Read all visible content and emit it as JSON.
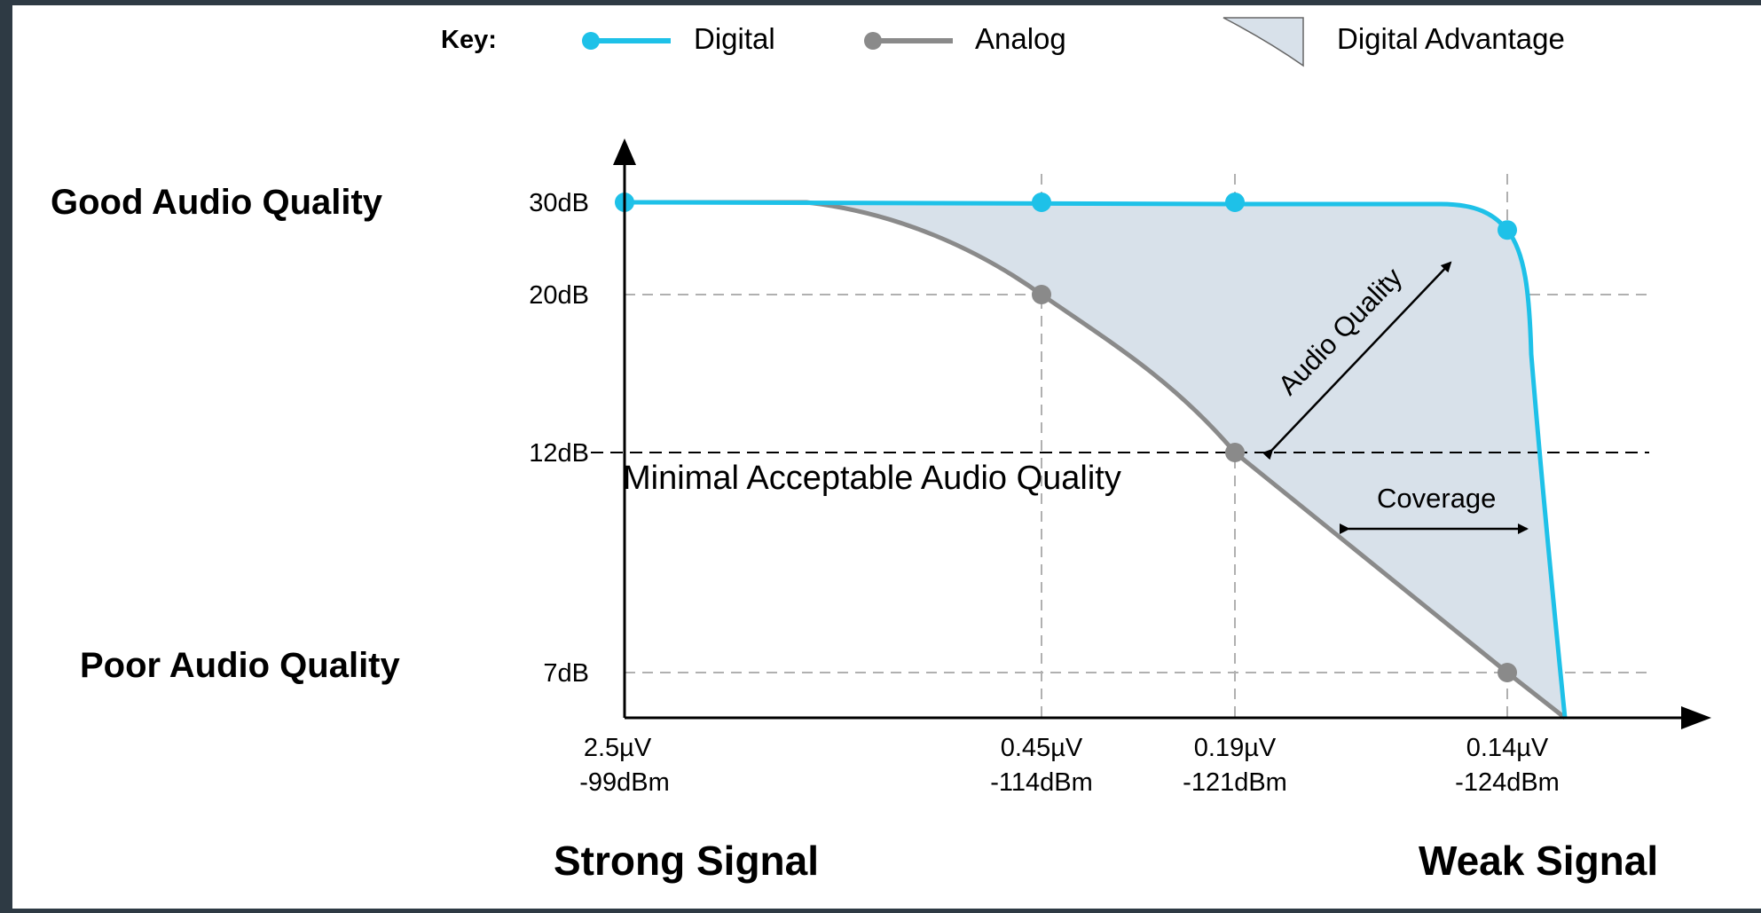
{
  "legend": {
    "key_label": "Key:",
    "items": [
      {
        "label": "Digital",
        "kind": "line",
        "color": "#1ec1e8"
      },
      {
        "label": "Analog",
        "kind": "line",
        "color": "#8a8a8a"
      },
      {
        "label": "Digital Advantage",
        "kind": "area",
        "color": "#d8e1ea"
      }
    ]
  },
  "quality_labels": {
    "good": "Good Audio Quality",
    "poor": "Poor Audio Quality"
  },
  "signal_labels": {
    "strong": "Strong Signal",
    "weak": "Weak Signal"
  },
  "annotations": {
    "threshold": "Minimal Acceptable Audio Quality",
    "audio_quality": "Audio Quality",
    "coverage": "Coverage"
  },
  "colors": {
    "digital": "#1ec1e8",
    "analog": "#8a8a8a",
    "advantage_fill": "#d8e1ea",
    "grid": "#b0b0b0",
    "axis": "#000000"
  },
  "chart_data": {
    "type": "line",
    "xlabel": "",
    "ylabel": "",
    "y_ticks": [
      {
        "value": 30,
        "label": "30dB"
      },
      {
        "value": 20,
        "label": "20dB"
      },
      {
        "value": 12,
        "label": "12dB"
      },
      {
        "value": 7,
        "label": "7dB"
      }
    ],
    "x_ticks": [
      {
        "uv": "2.5µV",
        "dbm": "-99dBm",
        "value": -99
      },
      {
        "uv": "0.45µV",
        "dbm": "-114dBm",
        "value": -114
      },
      {
        "uv": "0.19µV",
        "dbm": "-121dBm",
        "value": -121
      },
      {
        "uv": "0.14µV",
        "dbm": "-124dBm",
        "value": -124
      }
    ],
    "x_direction": "signal strength decreasing to the right",
    "threshold_db": 12,
    "series": [
      {
        "name": "Digital",
        "points": [
          {
            "x": -99,
            "y": 30
          },
          {
            "x": -114,
            "y": 30
          },
          {
            "x": -121,
            "y": 30
          },
          {
            "x": -124,
            "y": 27
          }
        ]
      },
      {
        "name": "Analog",
        "points": [
          {
            "x": -99,
            "y": 30
          },
          {
            "x": -114,
            "y": 20
          },
          {
            "x": -121,
            "y": 12
          },
          {
            "x": -124,
            "y": 7
          }
        ]
      }
    ],
    "grid": true,
    "legend_position": "top"
  }
}
